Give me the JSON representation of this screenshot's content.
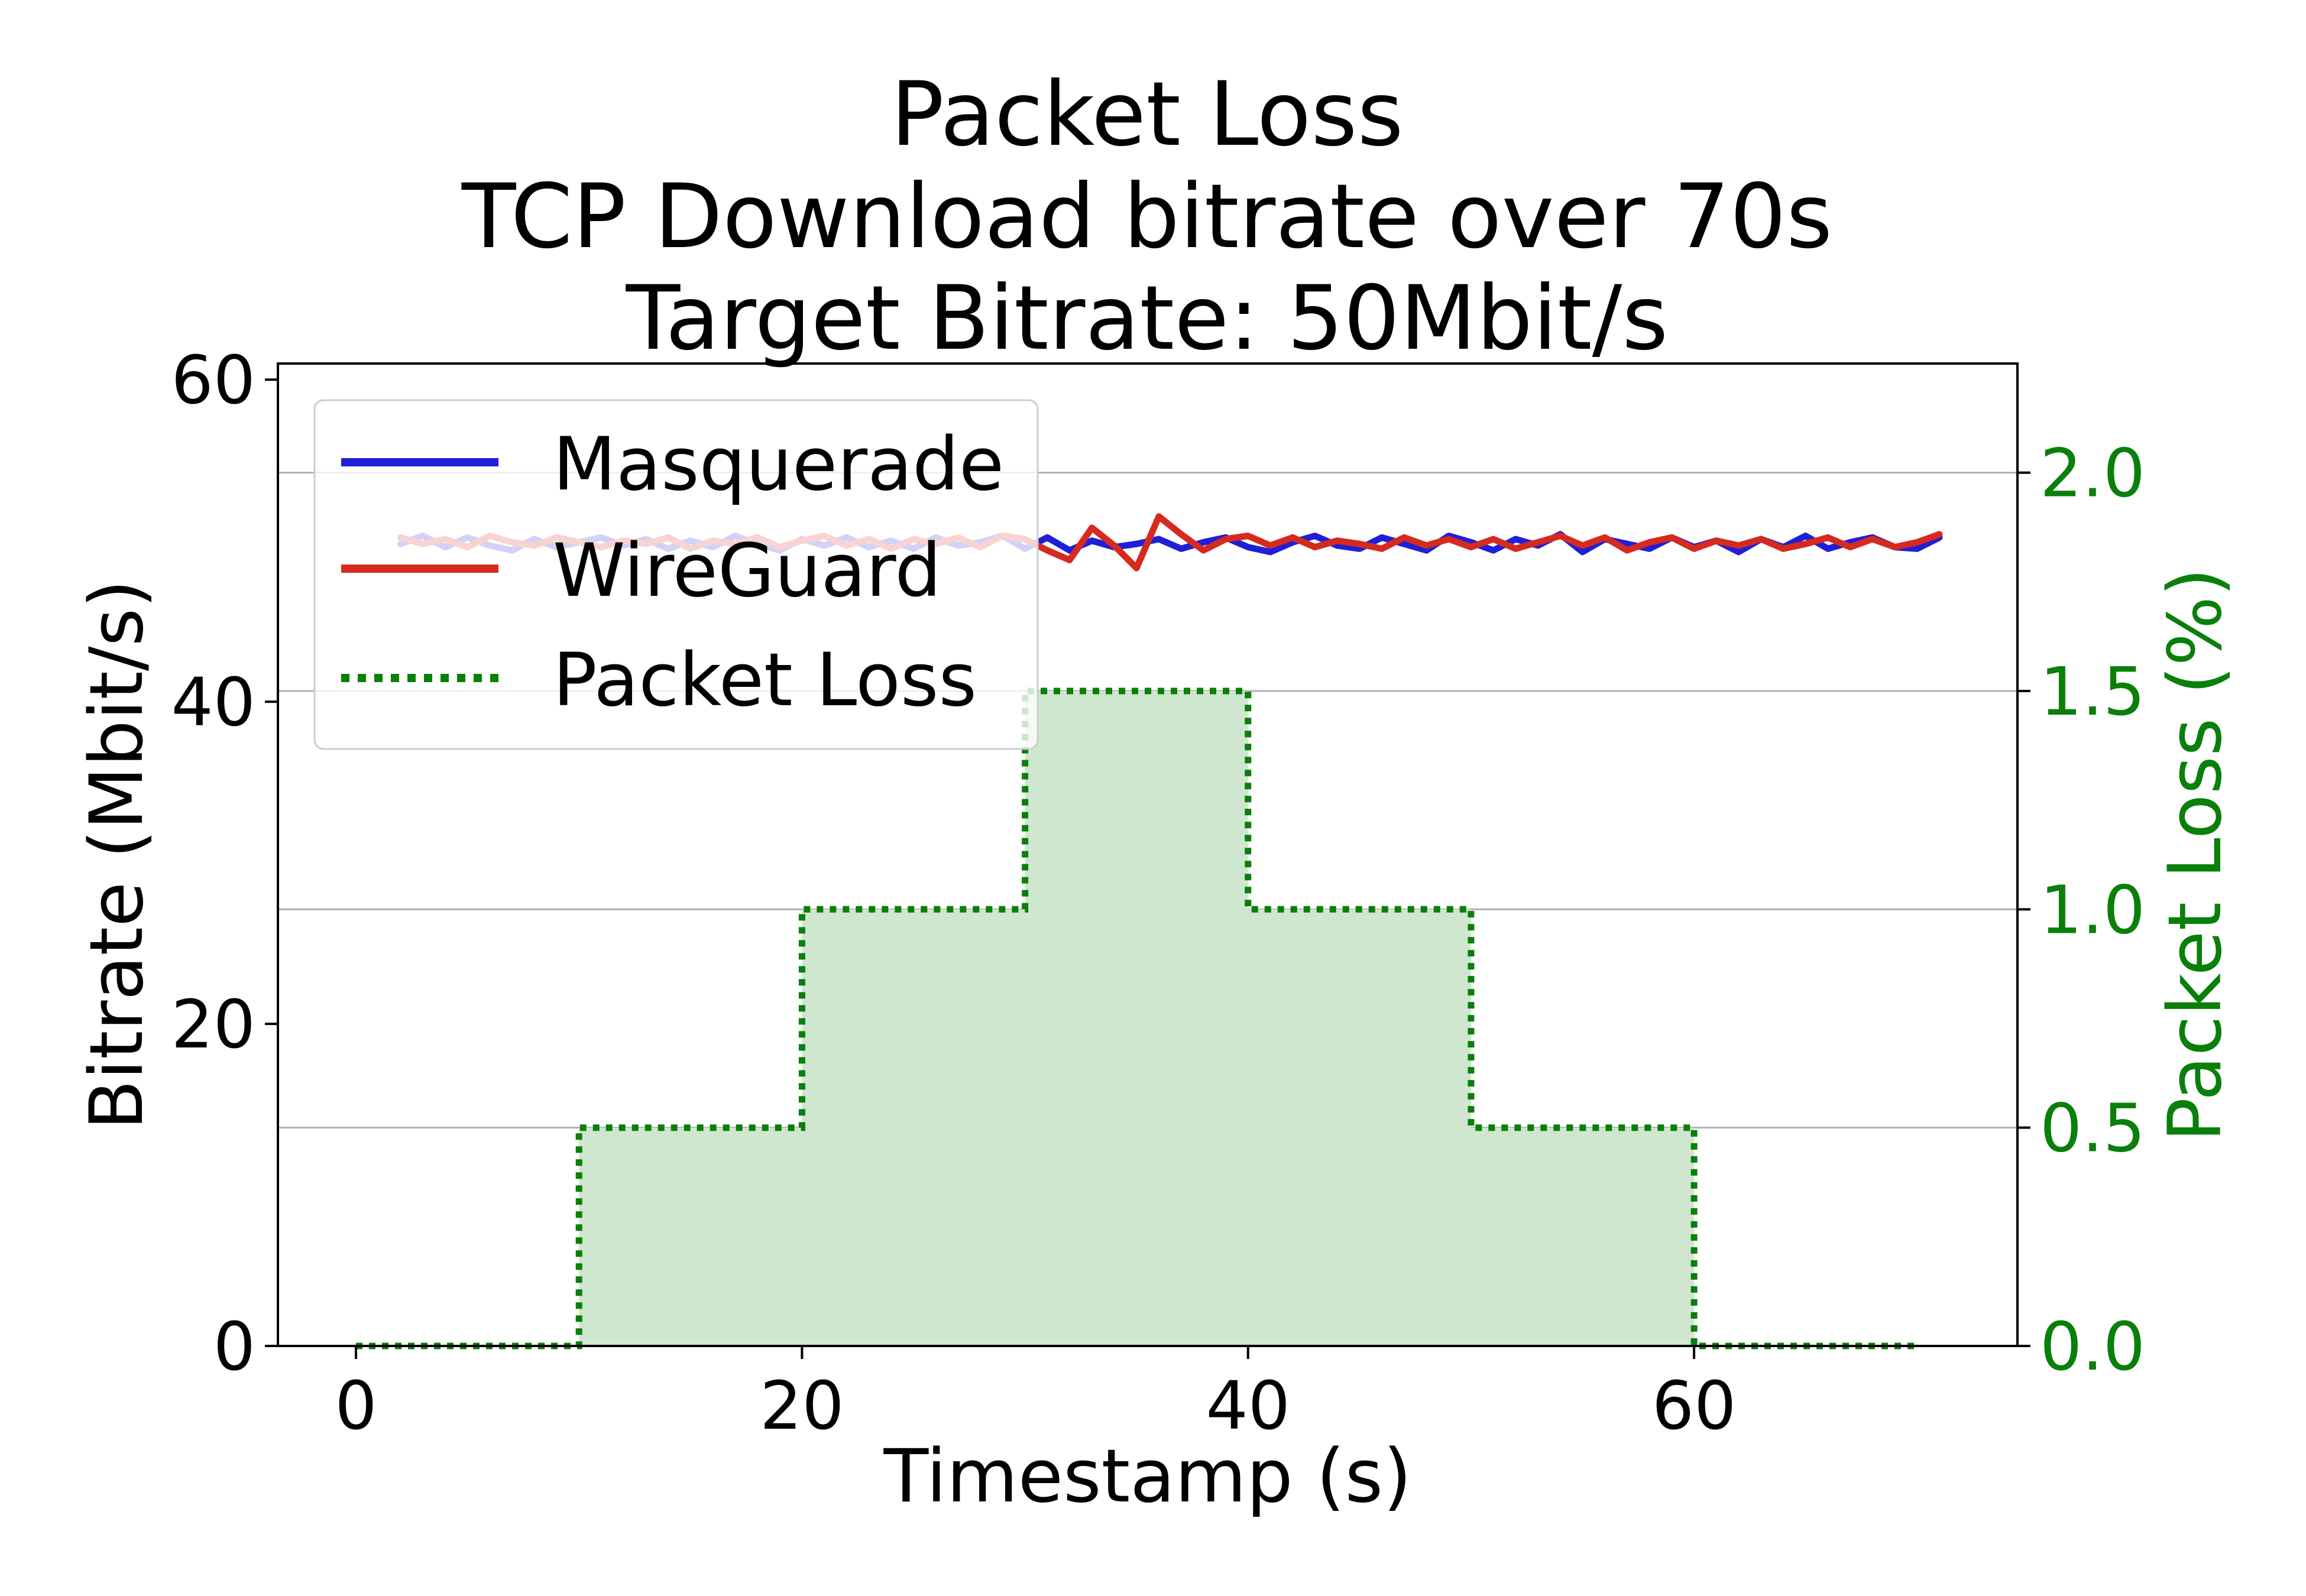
{
  "chart_data": {
    "type": "line",
    "title_lines": [
      "Packet Loss",
      "TCP Download bitrate over 70s",
      "Target Bitrate: 50Mbit/s"
    ],
    "xlabel": "Timestamp (s)",
    "ylabel": "Bitrate (Mbit/s)",
    "y2label": "Packet Loss (%)",
    "xlim": [
      -3.5,
      74.5
    ],
    "ylim": [
      0,
      61
    ],
    "y2lim": [
      0,
      2.25
    ],
    "xticks": [
      0,
      20,
      40,
      60
    ],
    "yticks": [
      0,
      20,
      40,
      60
    ],
    "y2ticks": [
      0.0,
      0.5,
      1.0,
      1.5,
      2.0
    ],
    "y2tick_labels": [
      "0.0",
      "0.5",
      "1.0",
      "1.5",
      "2.0"
    ],
    "grid": "horizontal lines at right-axis ticks",
    "legend_position": "upper-left",
    "colors": {
      "masquerade": "#1f1fd8",
      "wireguard": "#d62a1f",
      "loss": "#0a7f0a",
      "loss_fill": "#cfe6cf",
      "y2_axis": "#0a7f0a"
    },
    "series": [
      {
        "name": "Masquerade",
        "axis": "left",
        "x": [
          2,
          3,
          4,
          5,
          6,
          7,
          8,
          9,
          10,
          11,
          12,
          13,
          14,
          15,
          16,
          17,
          18,
          19,
          20,
          21,
          22,
          23,
          24,
          25,
          26,
          27,
          28,
          29,
          30,
          31,
          32,
          33,
          34,
          35,
          36,
          37,
          38,
          39,
          40,
          41,
          42,
          43,
          44,
          45,
          46,
          47,
          48,
          49,
          50,
          51,
          52,
          53,
          54,
          55,
          56,
          57,
          58,
          59,
          60,
          61,
          62,
          63,
          64,
          65,
          66,
          67,
          68,
          69,
          70,
          71
        ],
        "values": [
          49.8,
          50.3,
          49.6,
          50.2,
          49.7,
          49.4,
          50.1,
          49.6,
          49.9,
          50.2,
          49.7,
          50.1,
          49.5,
          50.0,
          49.6,
          50.3,
          49.8,
          49.4,
          50.1,
          49.7,
          50.2,
          49.6,
          50.0,
          49.5,
          50.2,
          49.7,
          49.9,
          50.3,
          49.5,
          50.2,
          49.4,
          50.0,
          49.6,
          49.8,
          50.1,
          49.5,
          49.9,
          50.2,
          49.6,
          49.3,
          49.9,
          50.3,
          49.7,
          49.5,
          50.2,
          49.8,
          49.4,
          50.3,
          49.9,
          49.4,
          50.1,
          49.7,
          50.4,
          49.3,
          50.1,
          49.8,
          49.5,
          50.2,
          49.6,
          50.0,
          49.3,
          50.1,
          49.6,
          50.3,
          49.5,
          49.9,
          50.2,
          49.6,
          49.5,
          50.2
        ]
      },
      {
        "name": "WireGuard",
        "axis": "left",
        "x": [
          2,
          3,
          4,
          5,
          6,
          7,
          8,
          9,
          10,
          11,
          12,
          13,
          14,
          15,
          16,
          17,
          18,
          19,
          20,
          21,
          22,
          23,
          24,
          25,
          26,
          27,
          28,
          29,
          30,
          31,
          32,
          33,
          34,
          35,
          36,
          37,
          38,
          39,
          40,
          41,
          42,
          43,
          44,
          45,
          46,
          47,
          48,
          49,
          50,
          51,
          52,
          53,
          54,
          55,
          56,
          57,
          58,
          59,
          60,
          61,
          62,
          63,
          64,
          65,
          66,
          67,
          68,
          69,
          70,
          71
        ],
        "values": [
          50.2,
          49.8,
          50.1,
          49.6,
          50.3,
          49.9,
          49.7,
          50.2,
          49.9,
          49.6,
          50.0,
          49.8,
          50.2,
          49.5,
          50.0,
          49.8,
          50.2,
          49.6,
          50.0,
          50.3,
          49.7,
          50.1,
          49.5,
          50.1,
          49.8,
          50.2,
          49.6,
          50.3,
          50.1,
          49.4,
          48.8,
          50.8,
          49.7,
          48.3,
          51.5,
          50.4,
          49.4,
          50.1,
          50.3,
          49.7,
          50.2,
          49.6,
          50.0,
          49.8,
          49.5,
          50.2,
          49.7,
          50.1,
          49.6,
          50.1,
          49.5,
          49.9,
          50.3,
          49.7,
          50.2,
          49.4,
          49.9,
          50.2,
          49.5,
          50.0,
          49.7,
          50.1,
          49.5,
          49.8,
          50.2,
          49.6,
          50.1,
          49.6,
          49.9,
          50.4
        ]
      },
      {
        "name": "Packet Loss",
        "axis": "right",
        "style": "steps-post dotted, filled",
        "x": [
          0,
          10,
          20,
          30,
          40,
          50,
          60,
          70
        ],
        "values": [
          0.0,
          0.5,
          1.0,
          1.5,
          1.0,
          0.5,
          0.0,
          0.0
        ]
      }
    ]
  }
}
